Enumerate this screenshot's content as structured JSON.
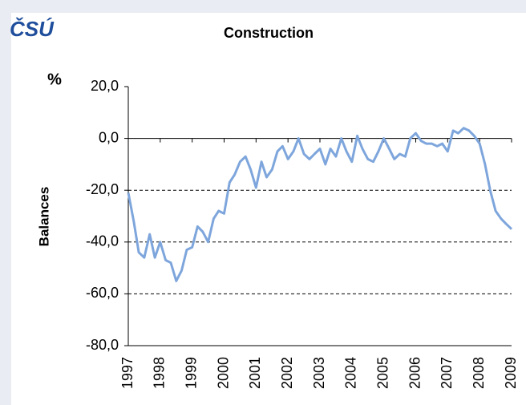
{
  "logo": "ČSÚ",
  "chart_data": {
    "type": "line",
    "title": "Construction",
    "unit": "%",
    "y_label": "Balances",
    "x": [
      1997,
      1997.17,
      1997.33,
      1997.5,
      1997.67,
      1997.83,
      1998,
      1998.17,
      1998.33,
      1998.5,
      1998.67,
      1998.83,
      1999,
      1999.17,
      1999.33,
      1999.5,
      1999.67,
      1999.83,
      2000,
      2000.17,
      2000.33,
      2000.5,
      2000.67,
      2000.83,
      2001,
      2001.17,
      2001.33,
      2001.5,
      2001.67,
      2001.83,
      2002,
      2002.17,
      2002.33,
      2002.5,
      2002.67,
      2002.83,
      2003,
      2003.17,
      2003.33,
      2003.5,
      2003.67,
      2003.83,
      2004,
      2004.17,
      2004.33,
      2004.5,
      2004.67,
      2004.83,
      2005,
      2005.17,
      2005.33,
      2005.5,
      2005.67,
      2005.83,
      2006,
      2006.17,
      2006.33,
      2006.5,
      2006.67,
      2006.83,
      2007,
      2007.17,
      2007.33,
      2007.5,
      2007.67,
      2007.83,
      2008,
      2008.17,
      2008.33,
      2008.5,
      2008.67,
      2008.83,
      2009
    ],
    "series": [
      {
        "name": "Balances",
        "color": "#7ea6dc",
        "values": [
          -21,
          -32,
          -44,
          -46,
          -37,
          -46,
          -40,
          -47,
          -48,
          -55,
          -51,
          -43,
          -42,
          -34,
          -36,
          -40,
          -31,
          -28,
          -29,
          -17,
          -14,
          -9,
          -7,
          -12,
          -19,
          -9,
          -15,
          -12,
          -5,
          -3,
          -8,
          -5,
          0,
          -6,
          -8,
          -6,
          -4,
          -10,
          -4,
          -7,
          0,
          -5,
          -9,
          1,
          -4,
          -8,
          -9,
          -5,
          0,
          -4,
          -8,
          -6,
          -7,
          0,
          2,
          -1,
          -2,
          -2,
          -3,
          -2,
          -5,
          3,
          2,
          4,
          3,
          1,
          -2,
          -10,
          -20,
          -28,
          -31,
          -33,
          -35
        ]
      }
    ],
    "xlim": [
      1997,
      2009
    ],
    "xticks": [
      1997,
      1998,
      1999,
      2000,
      2001,
      2002,
      2003,
      2004,
      2005,
      2006,
      2007,
      2008,
      2009
    ],
    "ylim": [
      -80,
      20
    ],
    "yticks": [
      {
        "value": -80,
        "label": "-80,0"
      },
      {
        "value": -60,
        "label": "-60,0"
      },
      {
        "value": -40,
        "label": "-40,0"
      },
      {
        "value": -20,
        "label": "-20,0"
      },
      {
        "value": 0,
        "label": "0,0"
      },
      {
        "value": 20,
        "label": "20,0"
      }
    ],
    "grid": true
  }
}
